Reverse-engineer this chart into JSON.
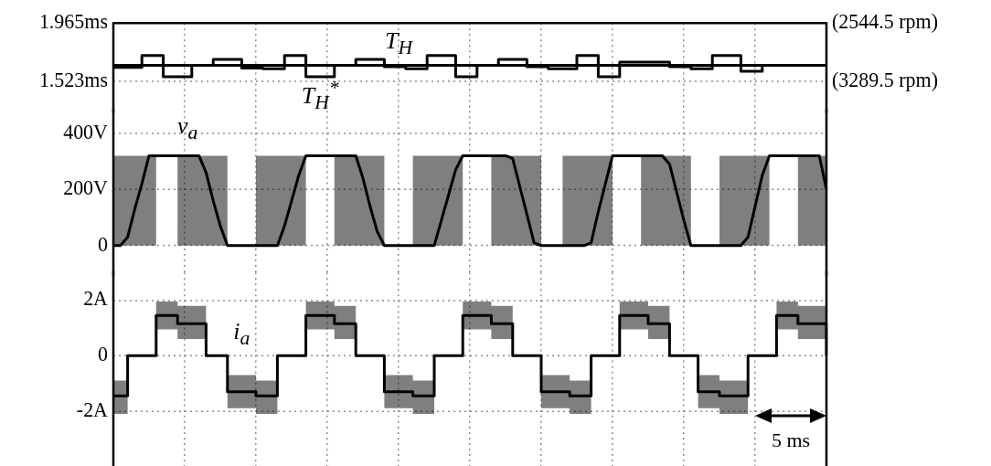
{
  "chart_data": [
    {
      "type": "line",
      "categories": [
        null,
        null,
        null,
        null,
        null,
        null,
        null,
        null,
        null,
        null,
        null,
        null,
        null,
        null,
        null,
        null,
        null,
        null,
        null,
        null,
        null,
        null,
        null,
        null,
        null,
        null,
        null,
        null,
        null,
        null,
        null,
        null,
        null,
        null,
        null,
        null,
        null,
        null,
        null,
        null,
        null,
        null,
        null,
        null,
        null,
        null,
        null,
        null,
        null,
        null,
        null,
        null,
        null,
        null,
        null,
        null,
        null,
        null,
        null,
        null,
        null,
        null,
        null,
        null,
        null,
        null,
        null,
        null,
        null,
        null,
        null,
        null,
        null,
        null,
        null,
        null,
        null,
        null,
        null,
        null,
        null,
        null,
        null,
        null,
        null,
        null,
        null,
        null,
        null,
        null,
        null,
        null,
        null,
        null,
        null,
        null,
        null,
        null,
        null,
        null,
        null
      ],
      "ylim": [
        1.3,
        1.965
      ],
      "yticks": [
        {
          "value": 1.965,
          "label": "1.965ms"
        },
        {
          "value": 1.523,
          "label": "1.523ms"
        }
      ],
      "y2lim": [
        3662,
        2544.5
      ],
      "y2ticks": [
        {
          "value": 2544.5,
          "label": "(2544.5 rpm)"
        },
        {
          "value": 3289.5,
          "label": "(3289.5 rpm)"
        }
      ],
      "tick_labels": "y",
      "grid": true,
      "marker": "none",
      "series": [
        {
          "name": "T$_{H}$",
          "color": "#000000",
          "values": [
            1.645,
            1.645,
            1.645,
            1.645,
            1.645,
            1.645,
            1.645,
            1.645,
            1.645,
            1.645,
            1.645,
            1.645,
            1.645,
            1.645,
            1.645,
            1.645,
            1.645,
            1.645,
            1.645,
            1.645,
            1.645,
            1.645,
            1.645,
            1.645,
            1.645,
            1.645,
            1.645,
            1.645,
            1.645,
            1.645,
            1.645,
            1.645,
            1.645,
            1.645,
            1.645,
            1.645,
            1.645,
            1.645,
            1.645,
            1.645,
            1.645,
            1.645,
            1.645,
            1.645,
            1.645,
            1.645,
            1.645,
            1.645,
            1.645,
            1.645,
            1.645,
            1.645,
            1.645,
            1.645,
            1.645,
            1.645,
            1.645,
            1.645,
            1.645,
            1.645,
            1.645,
            1.645,
            1.645,
            1.645,
            1.645,
            1.645,
            1.645,
            1.645,
            1.645,
            1.645,
            1.645,
            1.645,
            1.645,
            1.645,
            1.645,
            1.645,
            1.645,
            1.645,
            1.645,
            1.645,
            1.645,
            1.645,
            1.645,
            1.645,
            1.645,
            1.645,
            1.645,
            1.645,
            1.645,
            1.645,
            1.645,
            1.645,
            1.645,
            1.645,
            1.645,
            1.645,
            1.645,
            1.645,
            1.645,
            1.645,
            1.645
          ]
        },
        {
          "name": "T$_{H}$$^{*}$",
          "type": "step",
          "color": "#000000",
          "values": [
            1.63,
            1.63,
            1.63,
            1.63,
            1.72,
            1.72,
            1.72,
            1.56,
            1.56,
            1.56,
            1.56,
            1.645,
            1.645,
            1.645,
            1.69,
            1.69,
            1.69,
            1.69,
            1.625,
            1.625,
            1.625,
            1.62,
            1.62,
            1.62,
            1.72,
            1.72,
            1.72,
            1.56,
            1.56,
            1.56,
            1.56,
            1.645,
            1.645,
            1.645,
            1.69,
            1.69,
            1.69,
            1.69,
            1.635,
            1.635,
            1.635,
            1.62,
            1.62,
            1.62,
            1.72,
            1.72,
            1.72,
            1.72,
            1.56,
            1.56,
            1.56,
            1.645,
            1.645,
            1.645,
            1.69,
            1.69,
            1.69,
            1.69,
            1.635,
            1.635,
            1.635,
            1.62,
            1.62,
            1.62,
            1.62,
            1.72,
            1.72,
            1.72,
            1.56,
            1.56,
            1.56,
            1.67,
            1.67,
            1.67,
            1.67,
            1.67,
            1.67,
            1.67,
            1.635,
            1.635,
            1.635,
            1.62,
            1.62,
            1.62,
            1.72,
            1.72,
            1.72,
            1.72,
            1.6,
            1.6,
            1.6,
            1.645,
            1.645,
            1.645,
            1.645,
            1.645,
            1.645,
            1.645,
            1.645,
            1.645,
            1.645
          ]
        }
      ]
    },
    {
      "type": "line",
      "categories": [
        null,
        null,
        null,
        null,
        null,
        null,
        null,
        null,
        null,
        null,
        null,
        null,
        null,
        null,
        null,
        null,
        null,
        null,
        null,
        null,
        null,
        null,
        null,
        null,
        null,
        null,
        null,
        null,
        null,
        null,
        null,
        null,
        null,
        null,
        null,
        null,
        null,
        null,
        null,
        null,
        null,
        null,
        null,
        null,
        null,
        null,
        null,
        null,
        null,
        null,
        null,
        null,
        null,
        null,
        null,
        null,
        null,
        null,
        null,
        null,
        null,
        null,
        null,
        null,
        null,
        null,
        null,
        null,
        null,
        null,
        null,
        null,
        null,
        null,
        null,
        null,
        null,
        null,
        null,
        null,
        null,
        null,
        null,
        null,
        null,
        null,
        null,
        null,
        null,
        null,
        null,
        null,
        null,
        null,
        null,
        null,
        null,
        null,
        null,
        null,
        null
      ],
      "ylim": [
        -100,
        480
      ],
      "yticks": [
        0,
        {
          "value": 200,
          "label": "200V"
        },
        {
          "value": 400,
          "label": "400V"
        }
      ],
      "tick_labels": "y",
      "grid": true,
      "marker": "none",
      "series": [
        {
          "name": "v$_{a}$",
          "color": "#000000",
          "values": [
            0,
            0,
            30,
            130,
            220,
            320,
            320,
            320,
            320,
            320,
            320,
            320,
            320,
            260,
            160,
            70,
            0,
            0,
            0,
            0,
            0,
            0,
            0,
            0,
            70,
            160,
            250,
            320,
            320,
            320,
            320,
            320,
            320,
            320,
            320,
            240,
            140,
            50,
            0,
            0,
            0,
            0,
            0,
            0,
            0,
            0,
            90,
            180,
            270,
            320,
            320,
            320,
            320,
            320,
            320,
            320,
            310,
            210,
            110,
            10,
            0,
            0,
            0,
            0,
            0,
            0,
            0,
            10,
            120,
            220,
            320,
            320,
            320,
            320,
            320,
            320,
            320,
            320,
            290,
            190,
            90,
            0,
            0,
            0,
            0,
            0,
            0,
            0,
            0,
            30,
            140,
            250,
            320,
            320,
            320,
            320,
            320,
            320,
            320,
            320,
            200
          ],
          "lower": [
            0,
            0,
            0,
            0,
            0,
            0,
            320,
            320,
            320,
            0,
            0,
            0,
            0,
            0,
            0,
            0,
            0,
            0,
            0,
            0,
            0,
            0,
            0,
            0,
            0,
            0,
            0,
            320,
            320,
            320,
            320,
            0,
            0,
            0,
            0,
            0,
            0,
            0,
            0,
            0,
            0,
            0,
            0,
            0,
            0,
            0,
            0,
            0,
            0,
            320,
            320,
            320,
            320,
            0,
            0,
            0,
            0,
            0,
            0,
            0,
            0,
            0,
            0,
            0,
            0,
            0,
            0,
            0,
            0,
            0,
            320,
            320,
            320,
            320,
            0,
            0,
            0,
            0,
            0,
            0,
            0,
            0,
            0,
            0,
            0,
            0,
            0,
            0,
            0,
            0,
            0,
            0,
            320,
            320,
            320,
            320,
            0,
            0,
            0,
            0,
            0
          ],
          "upper": [
            320,
            320,
            320,
            320,
            320,
            320,
            320,
            320,
            320,
            320,
            320,
            320,
            320,
            320,
            320,
            320,
            0,
            0,
            0,
            0,
            320,
            320,
            320,
            320,
            320,
            320,
            320,
            320,
            320,
            320,
            320,
            320,
            320,
            320,
            320,
            320,
            320,
            320,
            0,
            0,
            0,
            0,
            320,
            320,
            320,
            320,
            320,
            320,
            320,
            320,
            320,
            320,
            320,
            320,
            320,
            320,
            320,
            320,
            320,
            320,
            0,
            0,
            0,
            320,
            320,
            320,
            320,
            320,
            320,
            320,
            320,
            320,
            320,
            320,
            320,
            320,
            320,
            320,
            320,
            320,
            320,
            0,
            0,
            0,
            0,
            320,
            320,
            320,
            320,
            320,
            320,
            320,
            320,
            320,
            320,
            320,
            320,
            320,
            320,
            320,
            320
          ]
        }
      ]
    },
    {
      "type": "step",
      "categories": [
        null,
        null,
        null,
        null,
        null,
        null,
        null,
        null,
        null,
        null,
        null,
        null,
        null,
        null,
        null,
        null,
        null,
        null,
        null,
        null,
        null,
        null,
        null,
        null,
        null,
        null,
        null,
        null,
        null,
        null,
        null,
        null,
        null,
        null,
        null,
        null,
        null,
        null,
        null,
        null,
        null,
        null,
        null,
        null,
        null,
        null,
        null,
        null,
        null,
        null,
        null,
        null,
        null,
        null,
        null,
        null,
        null,
        null,
        null,
        null,
        null,
        null,
        null,
        null,
        null,
        null,
        null,
        null,
        null,
        null,
        null,
        null,
        null,
        null,
        null,
        null,
        null,
        null,
        null,
        null,
        null,
        null,
        null,
        null,
        null,
        null,
        null,
        null,
        null,
        null,
        null,
        null,
        null,
        null,
        null,
        null,
        null,
        null,
        null,
        null,
        null
      ],
      "ylim": [
        -4,
        3
      ],
      "yticks": [
        {
          "value": -2,
          "label": "-2A"
        },
        0,
        {
          "value": 2,
          "label": "2A"
        }
      ],
      "tick_labels": "y",
      "grid": true,
      "marker": "none",
      "annotations": [
        "5 ms"
      ],
      "series": [
        {
          "name": "i$_{a}$",
          "color": "#000000",
          "values": [
            -1.45,
            -1.45,
            0,
            0,
            0,
            0,
            1.45,
            1.45,
            1.45,
            1.15,
            1.15,
            1.15,
            1.15,
            0,
            0,
            0,
            -1.3,
            -1.3,
            -1.3,
            -1.3,
            -1.45,
            -1.45,
            -1.45,
            0,
            0,
            0,
            0,
            1.45,
            1.45,
            1.45,
            1.45,
            1.15,
            1.15,
            1.15,
            0,
            0,
            0,
            0,
            -1.3,
            -1.3,
            -1.3,
            -1.3,
            -1.45,
            -1.45,
            -1.45,
            0,
            0,
            0,
            0,
            1.45,
            1.45,
            1.45,
            1.45,
            1.15,
            1.15,
            1.15,
            0,
            0,
            0,
            0,
            -1.3,
            -1.3,
            -1.3,
            -1.3,
            -1.45,
            -1.45,
            -1.45,
            0,
            0,
            0,
            0,
            1.45,
            1.45,
            1.45,
            1.45,
            1.15,
            1.15,
            1.15,
            0,
            0,
            0,
            0,
            -1.3,
            -1.3,
            -1.3,
            -1.45,
            -1.45,
            -1.45,
            -1.45,
            0,
            0,
            0,
            0,
            1.45,
            1.45,
            1.45,
            1.15,
            1.15,
            1.15,
            1.15,
            0
          ],
          "lower": [
            -2.1,
            -2.1,
            0,
            0,
            0,
            0,
            0.95,
            0.95,
            0.95,
            0.6,
            0.6,
            0.6,
            0.6,
            0,
            0,
            0,
            -1.9,
            -1.9,
            -1.9,
            -1.9,
            -2.1,
            -2.1,
            -2.1,
            0,
            0,
            0,
            0,
            0.95,
            0.95,
            0.95,
            0.95,
            0.6,
            0.6,
            0.6,
            0,
            0,
            0,
            0,
            -1.9,
            -1.9,
            -1.9,
            -1.9,
            -2.1,
            -2.1,
            -2.1,
            0,
            0,
            0,
            0,
            0.95,
            0.95,
            0.95,
            0.95,
            0.6,
            0.6,
            0.6,
            0,
            0,
            0,
            0,
            -1.9,
            -1.9,
            -1.9,
            -1.9,
            -2.1,
            -2.1,
            -2.1,
            0,
            0,
            0,
            0,
            0.95,
            0.95,
            0.95,
            0.95,
            0.6,
            0.6,
            0.6,
            0,
            0,
            0,
            0,
            -1.9,
            -1.9,
            -1.9,
            -2.1,
            -2.1,
            -2.1,
            -2.1,
            0,
            0,
            0,
            0,
            0.95,
            0.95,
            0.95,
            0.6,
            0.6,
            0.6,
            0.6,
            0
          ],
          "upper": [
            -0.9,
            -0.9,
            0,
            0,
            0,
            0,
            1.95,
            1.95,
            1.95,
            1.8,
            1.8,
            1.8,
            1.8,
            0,
            0,
            0,
            -0.7,
            -0.7,
            -0.7,
            -0.7,
            -0.9,
            -0.9,
            -0.9,
            0,
            0,
            0,
            0,
            1.95,
            1.95,
            1.95,
            1.95,
            1.8,
            1.8,
            1.8,
            0,
            0,
            0,
            0,
            -0.7,
            -0.7,
            -0.7,
            -0.7,
            -0.9,
            -0.9,
            -0.9,
            0,
            0,
            0,
            0,
            1.95,
            1.95,
            1.95,
            1.95,
            1.8,
            1.8,
            1.8,
            0,
            0,
            0,
            0,
            -0.7,
            -0.7,
            -0.7,
            -0.7,
            -0.9,
            -0.9,
            -0.9,
            0,
            0,
            0,
            0,
            1.95,
            1.95,
            1.95,
            1.95,
            1.8,
            1.8,
            1.8,
            0,
            0,
            0,
            0,
            -0.7,
            -0.7,
            -0.7,
            -0.9,
            -0.9,
            -0.9,
            -0.9,
            0,
            0,
            0,
            0,
            1.95,
            1.95,
            1.95,
            1.8,
            1.8,
            1.8,
            1.8,
            0
          ]
        }
      ]
    }
  ]
}
